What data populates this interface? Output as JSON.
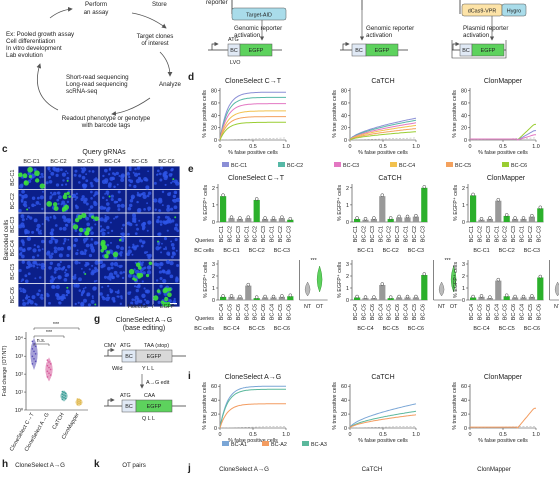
{
  "panel_labels": {
    "c": "c",
    "d": "d",
    "e": "e",
    "f": "f",
    "g": "g",
    "h": "h",
    "i": "i",
    "j": "j",
    "k": "k"
  },
  "workflow": {
    "perform": [
      "Perform",
      "an assay"
    ],
    "examples": [
      "Ex: Pooled growth assay",
      "Cell differentiation",
      "In vitro development",
      "Lab evolution"
    ],
    "store": "Store",
    "target_clones": [
      "Target clones",
      "of interest"
    ],
    "analyze": "Analyze",
    "sequencing": [
      "Short-read sequencing",
      "Long-read sequencing",
      "scRNA-seq"
    ],
    "readout": [
      "Readout phenotype or genotype",
      "with barcode tags"
    ]
  },
  "constructs": {
    "reporter_top": "reporter",
    "target_aid": "Target-AID",
    "dcas9": "dCas9-VPR",
    "hygro": "Hygro",
    "act1": [
      "Genomic reporter",
      "activation"
    ],
    "act2": [
      "Genomic reporter",
      "activation"
    ],
    "act3": [
      "Plasmid reporter",
      "activation"
    ],
    "atg": "ATG",
    "bc": "BC",
    "egfp": "EGFP",
    "lvo": "LVO"
  },
  "grid": {
    "title": "Query gRNAs",
    "cols": [
      "BC-C1",
      "BC-C2",
      "BC-C3",
      "BC-C4",
      "BC-C5",
      "BC-C6"
    ],
    "rows": [
      "BC-C1",
      "BC-C2",
      "BC-C3",
      "BC-C4",
      "BC-C5",
      "BC-C6"
    ],
    "side": "Barcoded cells",
    "hoechst": "Hoechst",
    "slash": " / ",
    "egfp": "EGFP"
  },
  "colors": {
    "c1": "#8b8fd6",
    "c2": "#56b8a6",
    "c3": "#e377c2",
    "c4": "#f2c14e",
    "c5": "#f4a15d",
    "c6": "#9acd32",
    "a1": "#7aa6d6",
    "a2": "#f39c60",
    "a3": "#5bb89c",
    "green": "#2bb02b",
    "gray": "#999999"
  },
  "roc_d": {
    "titles": [
      "CloneSelect C→T",
      "CaTCH",
      "ClonMapper"
    ],
    "ylabel": "% true positive cells",
    "xlabel": "% false positive cells",
    "yticks": [
      "0",
      "20",
      "40",
      "60",
      "80"
    ],
    "xticks": [
      "0",
      "0.5",
      "1.0"
    ],
    "legend": [
      "BC-C1",
      "BC-C2",
      "BC-C3",
      "BC-C4",
      "BC-C5",
      "BC-C6"
    ]
  },
  "bars_e": {
    "titles": [
      "CloneSelect C→T",
      "CaTCH",
      "ClonMapper"
    ],
    "ylabel": "% EGFP⁺ cells",
    "yticks_top": [
      "0",
      "1",
      "2"
    ],
    "yticks_bot": [
      "0",
      "1",
      "2",
      "3"
    ],
    "queries": "Queries",
    "bccells": "BC cells",
    "query_top": [
      "BC-C1",
      "BC-C2",
      "BC-C3",
      "BC-C1",
      "BC-C2",
      "BC-C3",
      "BC-C1",
      "BC-C2",
      "BC-C3"
    ],
    "cells_top": [
      "BC-C1",
      "BC-C2",
      "BC-C3"
    ],
    "query_bot": [
      "BC-C4",
      "BC-C5",
      "BC-C6",
      "BC-C4",
      "BC-C5",
      "BC-C6",
      "BC-C4",
      "BC-C5",
      "BC-C6"
    ],
    "cells_bot": [
      "BC-C4",
      "BC-C5",
      "BC-C6"
    ],
    "nt": "NT",
    "ot": "OT",
    "sig": "***",
    "panels": [
      {
        "top": [
          1.7,
          0.25,
          0.2,
          0.25,
          1.45,
          0.2,
          0.2,
          0.25,
          0.15
        ],
        "bot": [
          0.25,
          0.25,
          0.2,
          1.15,
          0.15,
          0.2,
          0.2,
          0.25,
          0.3
        ]
      },
      {
        "top": [
          0.2,
          0.15,
          0.2,
          1.7,
          0.2,
          0.3,
          0.3,
          0.35,
          2.25
        ],
        "bot": [
          0.2,
          0.15,
          0.15,
          1.2,
          0.15,
          0.2,
          0.2,
          0.2,
          2.0
        ]
      },
      {
        "top": [
          1.75,
          0.15,
          0.2,
          1.4,
          0.4,
          0.2,
          0.2,
          0.35,
          0.9
        ],
        "bot": [
          0.2,
          0.25,
          0.15,
          1.55,
          0.3,
          0.2,
          0.2,
          0.25,
          1.8
        ]
      }
    ]
  },
  "violin_f": {
    "ylabel": "Fold change (OT/NT)",
    "yticks": [
      "10⁰",
      "10¹",
      "10²",
      "10³",
      "10⁴"
    ],
    "cats": [
      "CloneSelect C→T",
      "CloneSelect A→G",
      "CaTCH",
      "ClonMapper"
    ],
    "ns": "n.s.",
    "sig": "***"
  },
  "editing_g": {
    "title": [
      "CloneSelect A→G",
      "(base editing)"
    ],
    "cmv": "CMV",
    "atg": "ATG",
    "taa": "TAA (stop)",
    "wild": "Wild",
    "yll": "Y L L",
    "edit": "A→G edit",
    "caa": "CAA",
    "qll": "Q L L",
    "bc": "BC",
    "egfp": "EGFP"
  },
  "roc_i": {
    "titles": [
      "CloneSelect A→G",
      "CaTCH",
      "ClonMapper"
    ],
    "ylabel": "% true positive cells",
    "xlabel": "% false positive cells",
    "yticks": [
      "0",
      "20",
      "40",
      "60"
    ],
    "xticks": [
      "0",
      "0.5",
      "1.0"
    ],
    "legend": [
      "BC-A1",
      "BC-A2",
      "BC-A3"
    ]
  },
  "bottom": {
    "h": "CloneSelect A→G",
    "k": "OT pairs",
    "j": [
      "CloneSelect A→G",
      "CaTCH",
      "ClonMapper"
    ]
  }
}
